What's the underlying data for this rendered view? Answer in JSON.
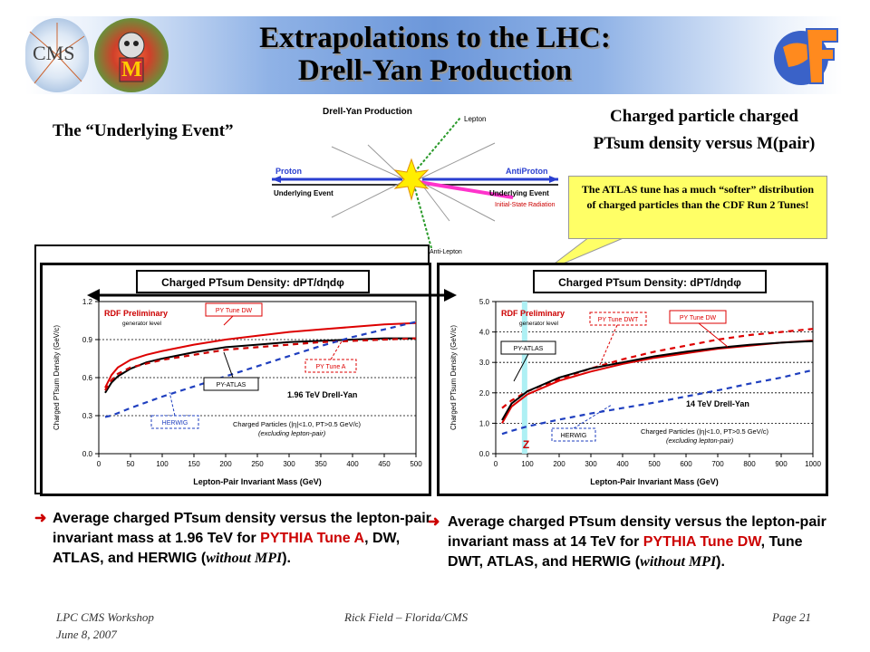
{
  "slide": {
    "title_line1": "Extrapolations to the LHC:",
    "title_line2": "Drell-Yan Production",
    "logo_left_text": "CMS",
    "logo_mid_text": "M",
    "heading_left": "The “Underlying Event”",
    "heading_right_line1": "Charged particle charged",
    "heading_right_line2": "PTsum density versus M(pair)",
    "callout": "The ATLAS tune has a much “softer” distribution of charged particles than the CDF Run 2 Tunes!",
    "diagram": {
      "title": "Drell-Yan Production",
      "lepton": "Lepton",
      "proton": "Proton",
      "antiproton": "AntiProton",
      "ue_left": "Underlying Event",
      "ue_right": "Underlying Event",
      "isr": "Initial-State Radiation",
      "antilepton": "Anti-Lepton"
    },
    "bullet_left": {
      "pre": "Average charged PTsum density versus the lepton-pair invariant mass at 1.96 TeV for ",
      "red": "PYTHIA Tune A",
      "mid": ", DW, ATLAS, and HERWIG (",
      "italic": "without MPI",
      "post": ")."
    },
    "bullet_right": {
      "pre": "Average charged PTsum density versus the lepton-pair invariant mass at 14 TeV for ",
      "red": "PYTHIA Tune DW",
      "mid": ", Tune DWT, ATLAS, and HERWIG (",
      "italic": "without MPI",
      "post": ")."
    },
    "footer_left_line1": "LPC CMS Workshop",
    "footer_left_line2": "June 8, 2007",
    "footer_center": "Rick Field – Florida/CMS",
    "footer_right": "Page 21"
  },
  "chart_data": [
    {
      "type": "line",
      "title": "Charged PTsum Density: dPT/dηdφ",
      "xlabel": "Lepton-Pair Invariant Mass (GeV)",
      "ylabel": "Charged PTsum Density (GeV/c)",
      "xlim": [
        0,
        500
      ],
      "ylim": [
        0,
        1.2
      ],
      "xticks": [
        "0",
        "50",
        "100",
        "150",
        "200",
        "250",
        "300",
        "350",
        "400",
        "450",
        "500"
      ],
      "yticks": [
        "0.0",
        "0.3",
        "0.6",
        "0.9",
        "1.2"
      ],
      "grid": "dashed horizontal",
      "rdf_label": "RDF Preliminary",
      "gen_label": "generator level",
      "energy_label": "1.96 TeV Drell-Yan",
      "cuts_line1": "Charged Particles (|η|<1.0, PT>0.5 GeV/c)",
      "cuts_line2": "(excluding lepton-pair)",
      "series": [
        {
          "name": "PY Tune DW",
          "color": "#dd0000",
          "style": "solid",
          "x": [
            10,
            20,
            30,
            50,
            75,
            100,
            150,
            200,
            250,
            300,
            350,
            400,
            450,
            500
          ],
          "y": [
            0.52,
            0.62,
            0.68,
            0.74,
            0.78,
            0.81,
            0.86,
            0.9,
            0.93,
            0.96,
            0.98,
            1.0,
            1.02,
            1.03
          ]
        },
        {
          "name": "PY Tune A",
          "color": "#000000",
          "style": "solid",
          "x": [
            10,
            20,
            30,
            50,
            75,
            100,
            150,
            200,
            250,
            300,
            350,
            400,
            450,
            500
          ],
          "y": [
            0.48,
            0.56,
            0.61,
            0.67,
            0.72,
            0.75,
            0.8,
            0.84,
            0.86,
            0.88,
            0.89,
            0.9,
            0.91,
            0.91
          ]
        },
        {
          "name": "PY-ATLAS",
          "color": "#cc0000",
          "style": "dashed",
          "x": [
            10,
            20,
            30,
            50,
            75,
            100,
            150,
            200,
            250,
            300,
            350,
            400,
            450,
            500
          ],
          "y": [
            0.5,
            0.58,
            0.63,
            0.68,
            0.71,
            0.74,
            0.78,
            0.82,
            0.84,
            0.86,
            0.88,
            0.89,
            0.9,
            0.91
          ]
        },
        {
          "name": "HERWIG",
          "color": "#1f3fbf",
          "style": "dashed",
          "x": [
            10,
            20,
            50,
            100,
            150,
            200,
            250,
            300,
            350,
            400,
            450,
            500
          ],
          "y": [
            0.29,
            0.3,
            0.36,
            0.45,
            0.53,
            0.61,
            0.69,
            0.77,
            0.85,
            0.92,
            0.98,
            1.04
          ]
        }
      ],
      "labels": {
        "dw": "PY Tune DW",
        "a": "PY Tune A",
        "atlas": "PY-ATLAS",
        "herwig": "HERWIG"
      }
    },
    {
      "type": "line",
      "title": "Charged PTsum Density: dPT/dηdφ",
      "xlabel": "Lepton-Pair Invariant Mass (GeV)",
      "ylabel": "Charged PTsum Density (GeV/c)",
      "xlim": [
        0,
        1000
      ],
      "ylim": [
        0,
        5.0
      ],
      "xticks": [
        "0",
        "100",
        "200",
        "300",
        "400",
        "500",
        "600",
        "700",
        "800",
        "900",
        "1000"
      ],
      "yticks": [
        "0.0",
        "1.0",
        "2.0",
        "3.0",
        "4.0",
        "5.0"
      ],
      "grid": "dashed horizontal",
      "rdf_label": "RDF Preliminary",
      "gen_label": "generator level",
      "energy_label": "14 TeV Drell-Yan",
      "z_label": "Z",
      "z_mass": 91,
      "cuts_line1": "Charged Particles (|η|<1.0, PT>0.5 GeV/c)",
      "cuts_line2": "(excluding lepton-pair)",
      "series": [
        {
          "name": "PY Tune DWT",
          "color": "#dd0000",
          "style": "dashed",
          "x": [
            20,
            50,
            100,
            200,
            300,
            400,
            500,
            600,
            700,
            800,
            900,
            1000
          ],
          "y": [
            1.5,
            1.75,
            2.05,
            2.45,
            2.8,
            3.1,
            3.35,
            3.55,
            3.75,
            3.9,
            4.0,
            4.1
          ]
        },
        {
          "name": "PY Tune DW",
          "color": "#dd0000",
          "style": "solid",
          "x": [
            20,
            50,
            100,
            200,
            300,
            400,
            500,
            600,
            700,
            800,
            900,
            1000
          ],
          "y": [
            1.0,
            1.55,
            1.95,
            2.4,
            2.7,
            2.95,
            3.15,
            3.3,
            3.45,
            3.55,
            3.65,
            3.72
          ]
        },
        {
          "name": "PY-ATLAS",
          "color": "#000000",
          "style": "solid",
          "x": [
            20,
            50,
            100,
            200,
            300,
            400,
            500,
            600,
            700,
            800,
            900,
            1000
          ],
          "y": [
            1.1,
            1.65,
            2.05,
            2.5,
            2.8,
            3.0,
            3.2,
            3.35,
            3.48,
            3.58,
            3.65,
            3.7
          ]
        },
        {
          "name": "HERWIG",
          "color": "#1f3fbf",
          "style": "dashed",
          "x": [
            20,
            50,
            100,
            200,
            300,
            400,
            500,
            600,
            700,
            800,
            900,
            1000
          ],
          "y": [
            0.65,
            0.75,
            0.9,
            1.12,
            1.32,
            1.5,
            1.68,
            1.88,
            2.08,
            2.3,
            2.5,
            2.75
          ]
        }
      ],
      "labels": {
        "dwt": "PY Tune DWT",
        "dw": "PY Tune DW",
        "atlas": "PY-ATLAS",
        "herwig": "HERWIG"
      }
    }
  ]
}
